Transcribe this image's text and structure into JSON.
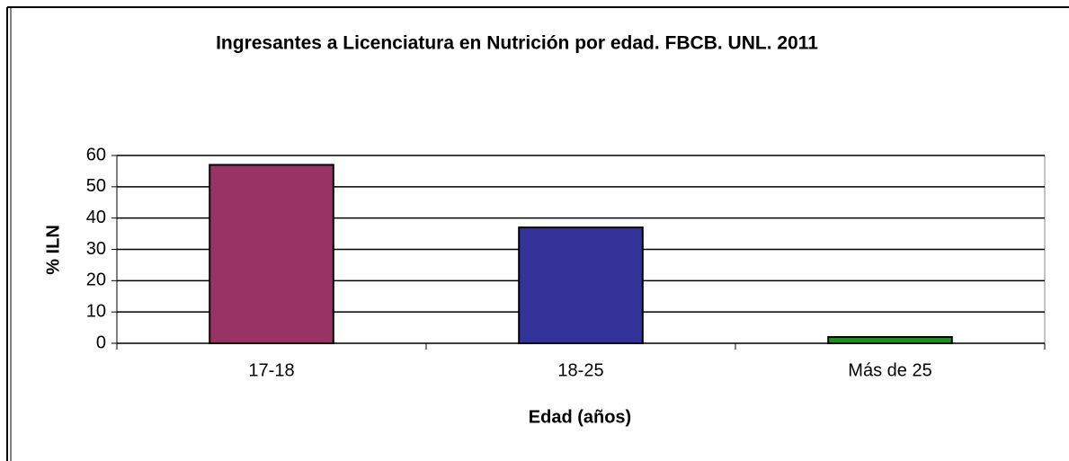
{
  "chart_data": {
    "type": "bar",
    "title": "Ingresantes a Licenciatura en Nutrición por edad. FBCB. UNL. 2011",
    "x_label": "Edad (años)",
    "y_label": "% ILN",
    "categories": [
      "17-18",
      "18-25",
      "Más de 25"
    ],
    "values": [
      57,
      37,
      2
    ],
    "colors": [
      "#993366",
      "#333399",
      "#228b22"
    ],
    "ylim": [
      0,
      60
    ],
    "yticks": [
      0,
      10,
      20,
      30,
      40,
      50,
      60
    ],
    "grid": true
  }
}
